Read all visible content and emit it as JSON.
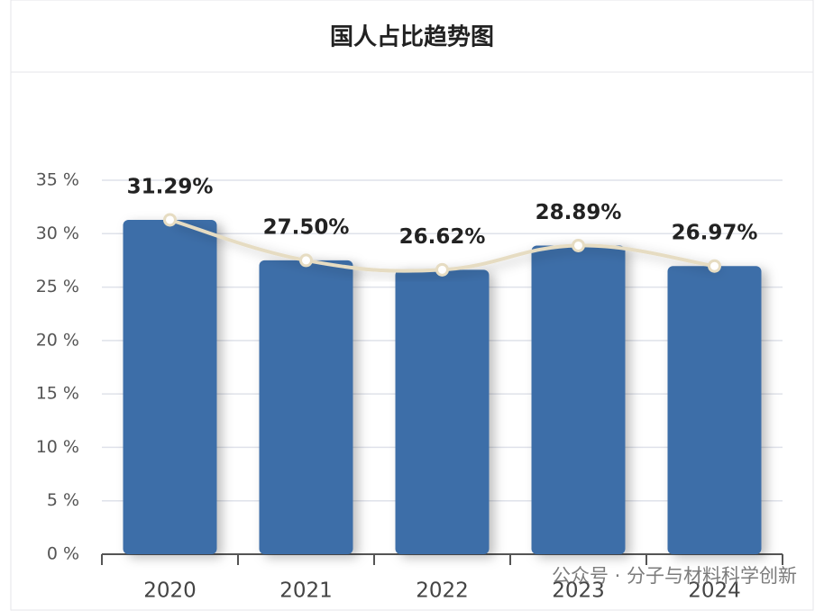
{
  "chart_data": {
    "type": "bar",
    "title": "国人占比趋势图",
    "categories": [
      "2020",
      "2021",
      "2022",
      "2023",
      "2024"
    ],
    "values": [
      31.29,
      27.5,
      26.62,
      28.89,
      26.97
    ],
    "value_labels": [
      "31.29%",
      "27.50%",
      "26.62%",
      "28.89%",
      "26.97%"
    ],
    "color": "#3d6ea8",
    "line_overlay": true,
    "line_color": "#e6dcc2",
    "ylim": [
      0,
      35
    ],
    "yticks": [
      {
        "value": 0,
        "label": "0 %"
      },
      {
        "value": 5,
        "label": "5 %"
      },
      {
        "value": 10,
        "label": "10 %"
      },
      {
        "value": 15,
        "label": "15 %"
      },
      {
        "value": 20,
        "label": "20 %"
      },
      {
        "value": 25,
        "label": "25 %"
      },
      {
        "value": 30,
        "label": "30 %"
      },
      {
        "value": 35,
        "label": "35 %"
      }
    ],
    "grid": true,
    "watermark": "公众号 · 分子与材料科学创新"
  }
}
